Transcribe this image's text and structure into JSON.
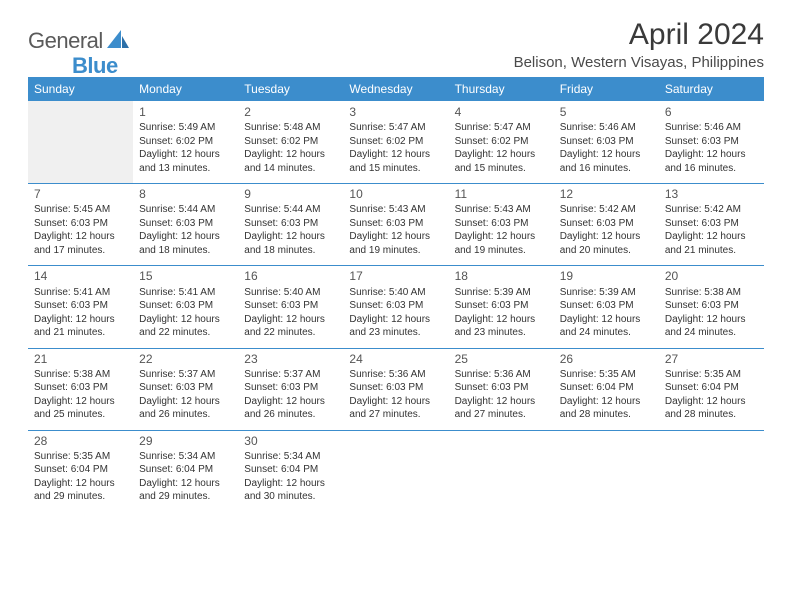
{
  "logo": {
    "part1": "General",
    "part2": "Blue"
  },
  "title": "April 2024",
  "location": "Belison, Western Visayas, Philippines",
  "colors": {
    "header_bg": "#3c8dcc",
    "header_fg": "#ffffff",
    "empty_bg": "#f0f0f0",
    "text": "#333333",
    "rule": "#3c8dcc"
  },
  "weekdays": [
    "Sunday",
    "Monday",
    "Tuesday",
    "Wednesday",
    "Thursday",
    "Friday",
    "Saturday"
  ],
  "weeks": [
    [
      {
        "blank": true
      },
      {
        "day": "1",
        "sunrise": "Sunrise: 5:49 AM",
        "sunset": "Sunset: 6:02 PM",
        "daylight": "Daylight: 12 hours and 13 minutes."
      },
      {
        "day": "2",
        "sunrise": "Sunrise: 5:48 AM",
        "sunset": "Sunset: 6:02 PM",
        "daylight": "Daylight: 12 hours and 14 minutes."
      },
      {
        "day": "3",
        "sunrise": "Sunrise: 5:47 AM",
        "sunset": "Sunset: 6:02 PM",
        "daylight": "Daylight: 12 hours and 15 minutes."
      },
      {
        "day": "4",
        "sunrise": "Sunrise: 5:47 AM",
        "sunset": "Sunset: 6:02 PM",
        "daylight": "Daylight: 12 hours and 15 minutes."
      },
      {
        "day": "5",
        "sunrise": "Sunrise: 5:46 AM",
        "sunset": "Sunset: 6:03 PM",
        "daylight": "Daylight: 12 hours and 16 minutes."
      },
      {
        "day": "6",
        "sunrise": "Sunrise: 5:46 AM",
        "sunset": "Sunset: 6:03 PM",
        "daylight": "Daylight: 12 hours and 16 minutes."
      }
    ],
    [
      {
        "day": "7",
        "sunrise": "Sunrise: 5:45 AM",
        "sunset": "Sunset: 6:03 PM",
        "daylight": "Daylight: 12 hours and 17 minutes."
      },
      {
        "day": "8",
        "sunrise": "Sunrise: 5:44 AM",
        "sunset": "Sunset: 6:03 PM",
        "daylight": "Daylight: 12 hours and 18 minutes."
      },
      {
        "day": "9",
        "sunrise": "Sunrise: 5:44 AM",
        "sunset": "Sunset: 6:03 PM",
        "daylight": "Daylight: 12 hours and 18 minutes."
      },
      {
        "day": "10",
        "sunrise": "Sunrise: 5:43 AM",
        "sunset": "Sunset: 6:03 PM",
        "daylight": "Daylight: 12 hours and 19 minutes."
      },
      {
        "day": "11",
        "sunrise": "Sunrise: 5:43 AM",
        "sunset": "Sunset: 6:03 PM",
        "daylight": "Daylight: 12 hours and 19 minutes."
      },
      {
        "day": "12",
        "sunrise": "Sunrise: 5:42 AM",
        "sunset": "Sunset: 6:03 PM",
        "daylight": "Daylight: 12 hours and 20 minutes."
      },
      {
        "day": "13",
        "sunrise": "Sunrise: 5:42 AM",
        "sunset": "Sunset: 6:03 PM",
        "daylight": "Daylight: 12 hours and 21 minutes."
      }
    ],
    [
      {
        "day": "14",
        "sunrise": "Sunrise: 5:41 AM",
        "sunset": "Sunset: 6:03 PM",
        "daylight": "Daylight: 12 hours and 21 minutes."
      },
      {
        "day": "15",
        "sunrise": "Sunrise: 5:41 AM",
        "sunset": "Sunset: 6:03 PM",
        "daylight": "Daylight: 12 hours and 22 minutes."
      },
      {
        "day": "16",
        "sunrise": "Sunrise: 5:40 AM",
        "sunset": "Sunset: 6:03 PM",
        "daylight": "Daylight: 12 hours and 22 minutes."
      },
      {
        "day": "17",
        "sunrise": "Sunrise: 5:40 AM",
        "sunset": "Sunset: 6:03 PM",
        "daylight": "Daylight: 12 hours and 23 minutes."
      },
      {
        "day": "18",
        "sunrise": "Sunrise: 5:39 AM",
        "sunset": "Sunset: 6:03 PM",
        "daylight": "Daylight: 12 hours and 23 minutes."
      },
      {
        "day": "19",
        "sunrise": "Sunrise: 5:39 AM",
        "sunset": "Sunset: 6:03 PM",
        "daylight": "Daylight: 12 hours and 24 minutes."
      },
      {
        "day": "20",
        "sunrise": "Sunrise: 5:38 AM",
        "sunset": "Sunset: 6:03 PM",
        "daylight": "Daylight: 12 hours and 24 minutes."
      }
    ],
    [
      {
        "day": "21",
        "sunrise": "Sunrise: 5:38 AM",
        "sunset": "Sunset: 6:03 PM",
        "daylight": "Daylight: 12 hours and 25 minutes."
      },
      {
        "day": "22",
        "sunrise": "Sunrise: 5:37 AM",
        "sunset": "Sunset: 6:03 PM",
        "daylight": "Daylight: 12 hours and 26 minutes."
      },
      {
        "day": "23",
        "sunrise": "Sunrise: 5:37 AM",
        "sunset": "Sunset: 6:03 PM",
        "daylight": "Daylight: 12 hours and 26 minutes."
      },
      {
        "day": "24",
        "sunrise": "Sunrise: 5:36 AM",
        "sunset": "Sunset: 6:03 PM",
        "daylight": "Daylight: 12 hours and 27 minutes."
      },
      {
        "day": "25",
        "sunrise": "Sunrise: 5:36 AM",
        "sunset": "Sunset: 6:03 PM",
        "daylight": "Daylight: 12 hours and 27 minutes."
      },
      {
        "day": "26",
        "sunrise": "Sunrise: 5:35 AM",
        "sunset": "Sunset: 6:04 PM",
        "daylight": "Daylight: 12 hours and 28 minutes."
      },
      {
        "day": "27",
        "sunrise": "Sunrise: 5:35 AM",
        "sunset": "Sunset: 6:04 PM",
        "daylight": "Daylight: 12 hours and 28 minutes."
      }
    ],
    [
      {
        "day": "28",
        "sunrise": "Sunrise: 5:35 AM",
        "sunset": "Sunset: 6:04 PM",
        "daylight": "Daylight: 12 hours and 29 minutes."
      },
      {
        "day": "29",
        "sunrise": "Sunrise: 5:34 AM",
        "sunset": "Sunset: 6:04 PM",
        "daylight": "Daylight: 12 hours and 29 minutes."
      },
      {
        "day": "30",
        "sunrise": "Sunrise: 5:34 AM",
        "sunset": "Sunset: 6:04 PM",
        "daylight": "Daylight: 12 hours and 30 minutes."
      },
      {
        "blank": true
      },
      {
        "blank": true
      },
      {
        "blank": true
      },
      {
        "blank": true
      }
    ]
  ]
}
